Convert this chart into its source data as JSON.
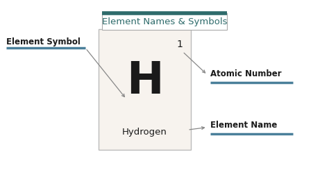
{
  "title": "Element Names & Symbols",
  "title_box_color": "#2e6b6b",
  "background_color": "#ffffff",
  "element_bg": "#f7f3ee",
  "element_symbol": "H",
  "element_name": "Hydrogen",
  "atomic_number": "1",
  "label_element_symbol": "Element Symbol",
  "label_atomic_number": "Atomic Number",
  "label_element_name": "Element Name",
  "teal_color": "#4a7f9a",
  "dark_text": "#1a1a1a",
  "title_text_color": "#2e6b6b",
  "label_fontsize": 8.5,
  "title_fontsize": 9.5,
  "elem_sym_fontsize": 46,
  "elem_name_fontsize": 9.5,
  "atomic_num_fontsize": 10
}
